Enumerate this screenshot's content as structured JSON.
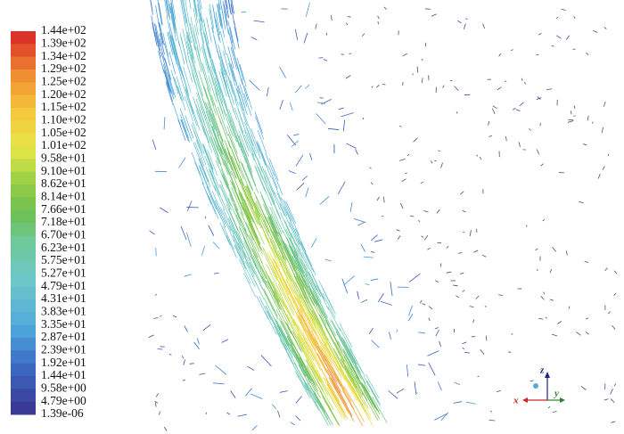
{
  "legend": {
    "labels": [
      "1.44e+02",
      "1.39e+02",
      "1.34e+02",
      "1.29e+02",
      "1.25e+02",
      "1.20e+02",
      "1.15e+02",
      "1.10e+02",
      "1.05e+02",
      "1.01e+02",
      "9.58e+01",
      "9.10e+01",
      "8.62e+01",
      "8.14e+01",
      "7.66e+01",
      "7.18e+01",
      "6.70e+01",
      "6.23e+01",
      "5.75e+01",
      "5.27e+01",
      "4.79e+01",
      "4.31e+01",
      "3.83e+01",
      "3.35e+01",
      "2.87e+01",
      "2.39e+01",
      "1.92e+01",
      "1.44e+01",
      "9.58e+00",
      "4.79e+00",
      "1.39e-06"
    ]
  },
  "axes": {
    "z": "z",
    "y": "y",
    "x": "x"
  }
}
